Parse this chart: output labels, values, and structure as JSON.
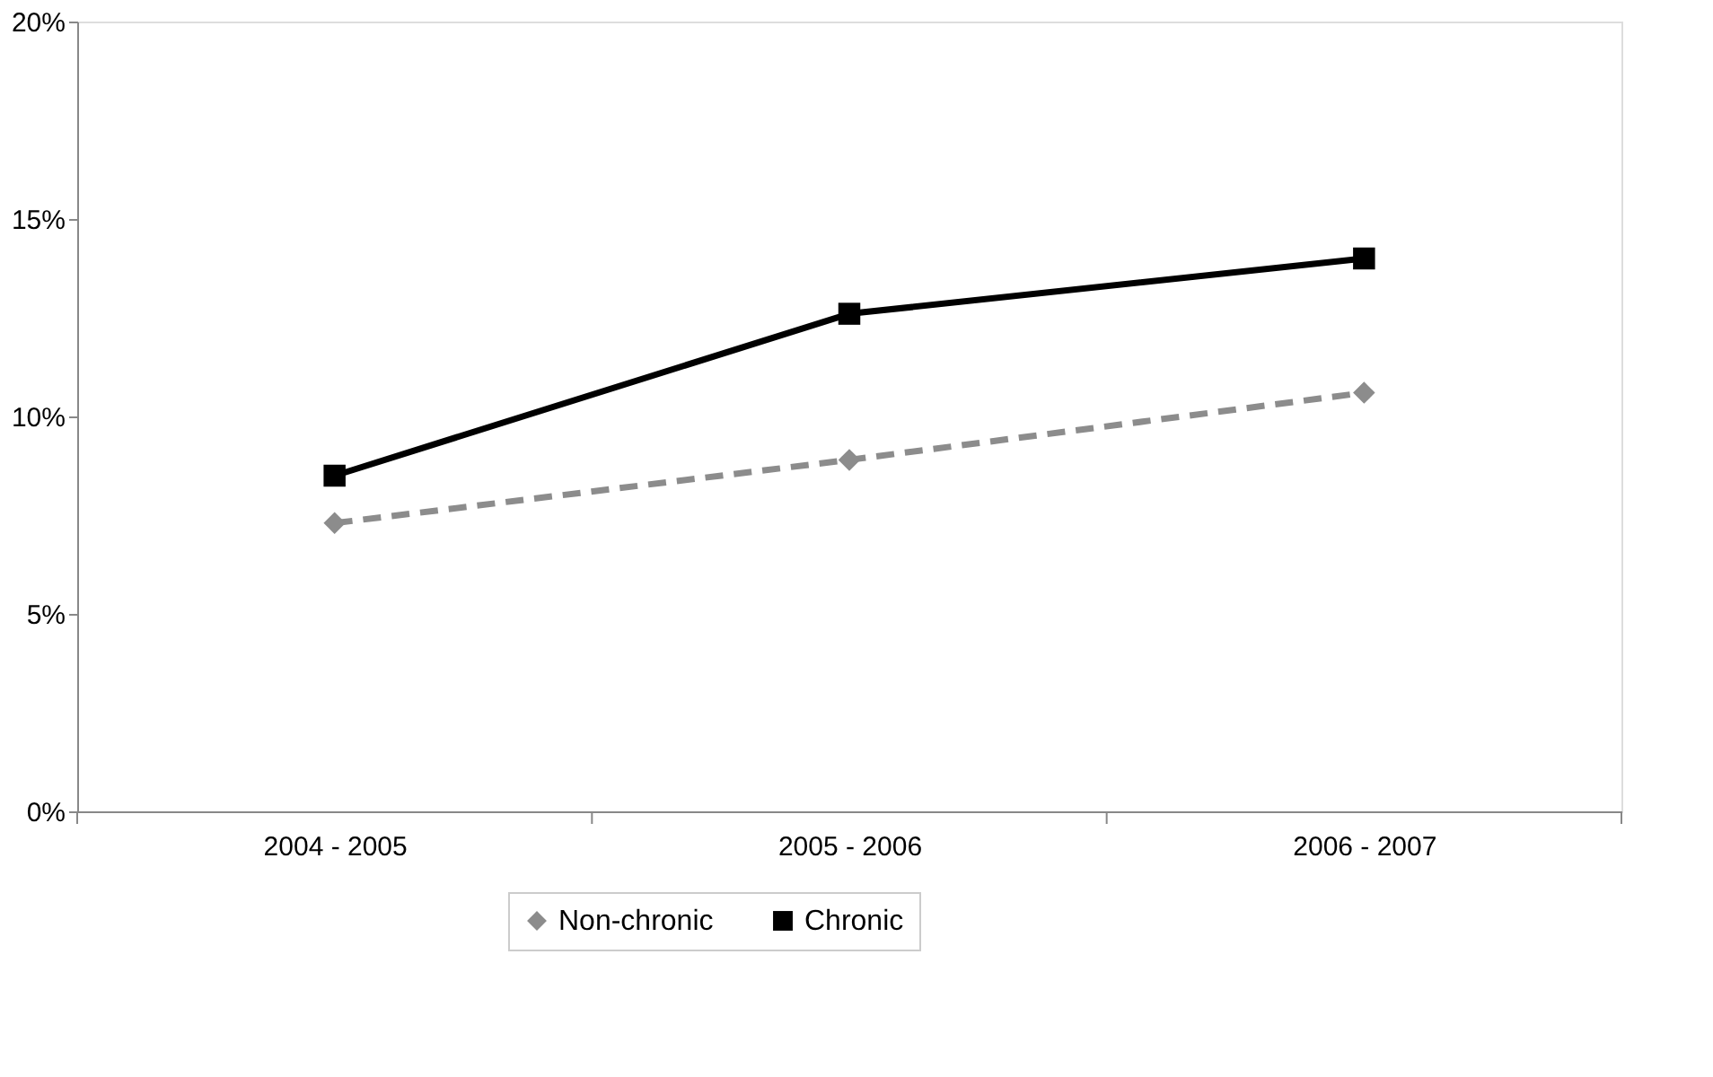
{
  "chart_data": {
    "type": "line",
    "categories": [
      "2004 - 2005",
      "2005 - 2006",
      "2006 - 2007"
    ],
    "series": [
      {
        "name": "Non-chronic",
        "color": "#8c8c8c",
        "values": [
          7.3,
          8.9,
          10.6
        ],
        "marker": "diamond",
        "line_style": "dashed"
      },
      {
        "name": "Chronic",
        "color": "#000000",
        "values": [
          8.5,
          12.6,
          14.0
        ],
        "marker": "square",
        "line_style": "solid"
      }
    ],
    "ylim": [
      0,
      20
    ],
    "yticks": [
      {
        "value": 0,
        "label": "0%"
      },
      {
        "value": 5,
        "label": "5%"
      },
      {
        "value": 10,
        "label": "10%"
      },
      {
        "value": 15,
        "label": "15%"
      },
      {
        "value": 20,
        "label": "20%"
      }
    ],
    "grid": false,
    "legend": "bottom"
  }
}
